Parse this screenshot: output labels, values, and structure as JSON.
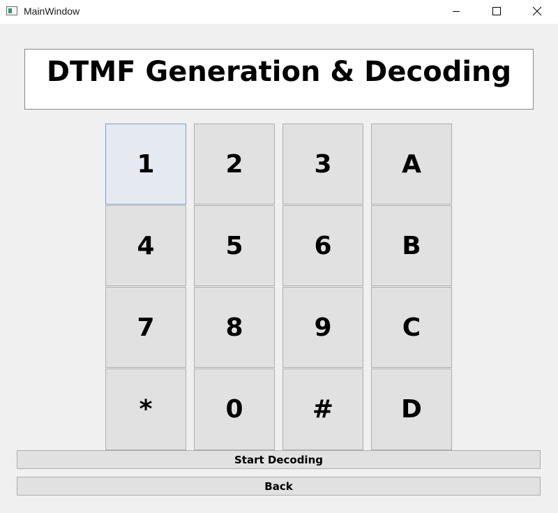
{
  "window": {
    "title": "MainWindow",
    "icons": {
      "app": "app-window-icon",
      "minimize": "minimize-icon",
      "maximize": "maximize-icon",
      "close": "close-icon"
    }
  },
  "header": {
    "title": "DTMF Generation & Decoding"
  },
  "keypad": {
    "keys": [
      "1",
      "2",
      "3",
      "A",
      "4",
      "5",
      "6",
      "B",
      "7",
      "8",
      "9",
      "C",
      "*",
      "0",
      "#",
      "D"
    ],
    "focused_key": "1"
  },
  "actions": {
    "start_label": "Start Decoding",
    "back_label": "Back"
  },
  "colors": {
    "window_bg": "#f0f0f0",
    "button_bg": "#e1e1e1",
    "button_border": "#adadad",
    "focus_bg": "#e5eaf1",
    "focus_border": "#6f9fd2"
  }
}
